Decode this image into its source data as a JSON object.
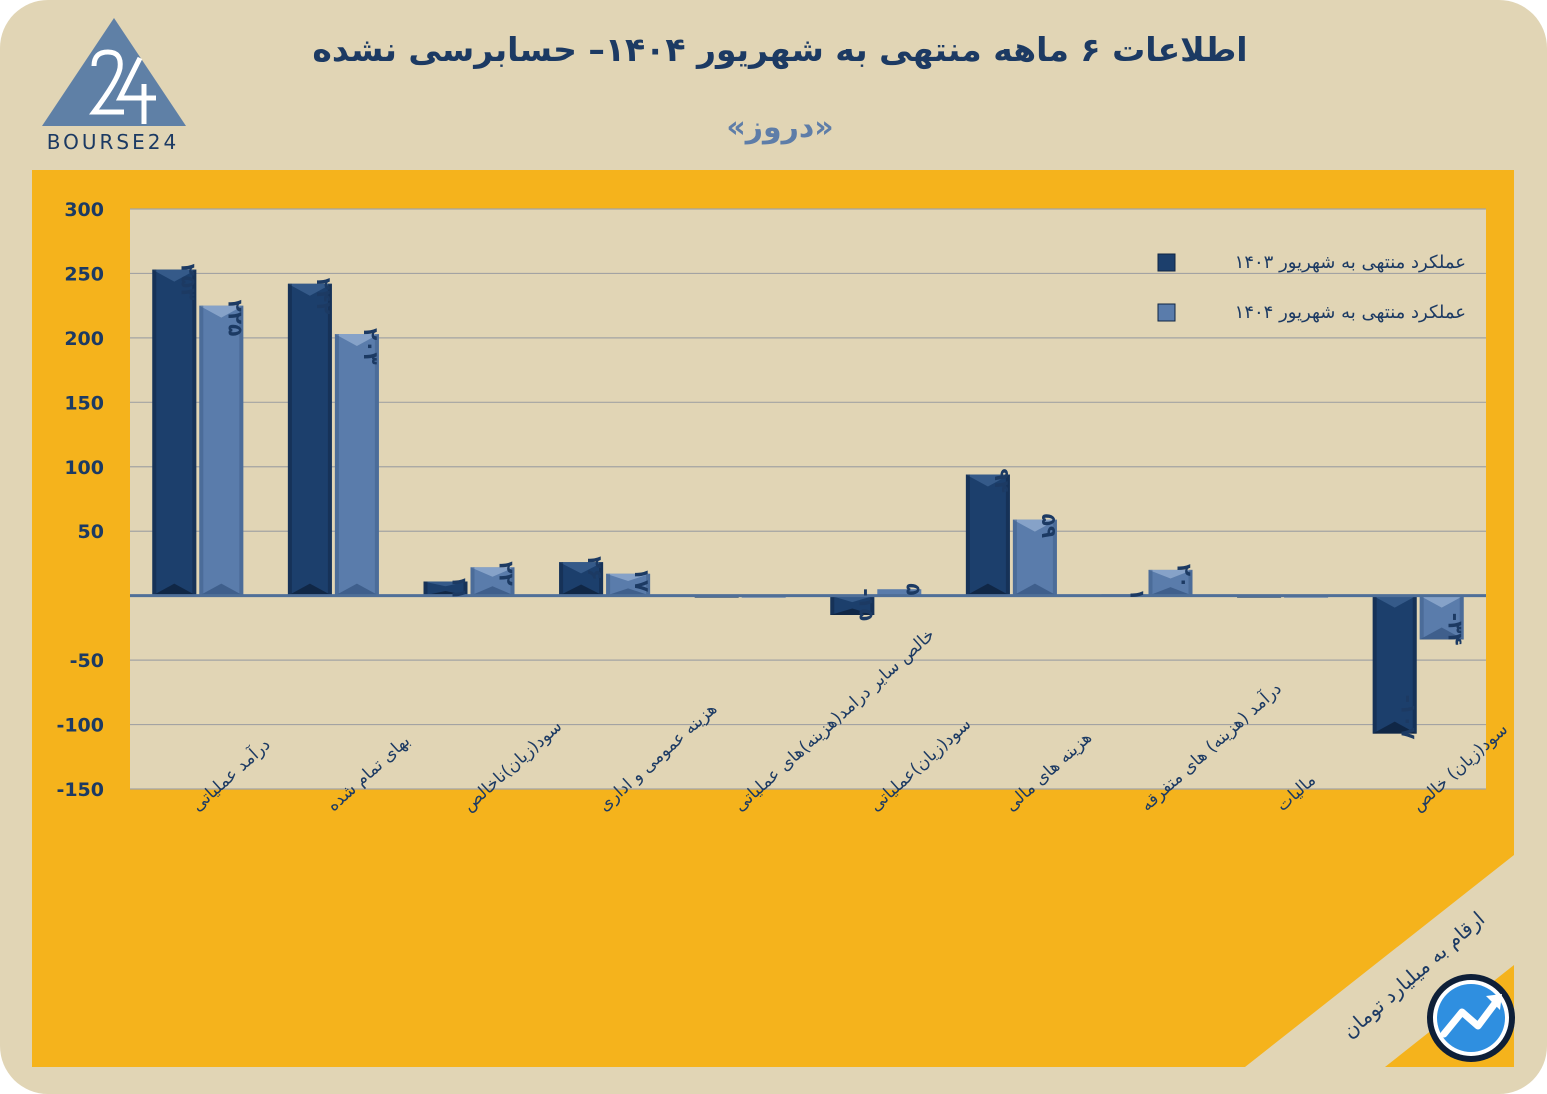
{
  "header": {
    "title": "اطلاعات ۶ ماهه منتهی به شهریور  ۱۴۰۴– حسابرسی نشده",
    "subtitle": "«دروز»",
    "logo_text": "BOURSE24"
  },
  "unit_note": "ارقام به میلیارد تومان",
  "colors": {
    "frame": "#e1d5b5",
    "panel": "#f5b31c",
    "plot": "#e1d5b5",
    "series_1403": "#1c3f6c",
    "series_1404": "#5a7cab",
    "text": "#1c3a63"
  },
  "chart_data": {
    "type": "bar",
    "ylim": [
      -150,
      300
    ],
    "yticks": [
      300,
      250,
      200,
      150,
      100,
      50,
      0,
      -50,
      -100,
      -150
    ],
    "ytick_labels": [
      "300",
      "250",
      "200",
      "150",
      "100",
      "50",
      "",
      "-50",
      "-100",
      "-150"
    ],
    "grid": true,
    "legend_position": "top-right",
    "categories": [
      "درآمد عملیاتی",
      "بهای تمام شده",
      "سود(زیان)ناخالص",
      "هزینه عمومی و اداری",
      "خالص سایر درامد(هزینه)های عملیاتی",
      "سود(زیان)عملیاتی",
      "هزینه های مالی",
      "درآمد (هزینه) های متفرقه",
      "مالیات",
      "سود(زیان) خالص"
    ],
    "series": [
      {
        "name": "عملکرد منتهی به شهریور ۱۴۰۳",
        "values": [
          253,
          242,
          11,
          26,
          0,
          -15,
          94,
          1,
          0,
          -107
        ],
        "labels": [
          "۲۵۳",
          "۲۴۲",
          "۱۱",
          "۲۶",
          "",
          "-۱۵",
          "۹۴",
          "۱",
          "",
          "-۱۰۷"
        ]
      },
      {
        "name": "عملکرد منتهی به شهریور ۱۴۰۴",
        "values": [
          225,
          203,
          22,
          17,
          0,
          5,
          59,
          20,
          0,
          -34
        ],
        "labels": [
          "۲۲۵",
          "۲۰۳",
          "۲۲",
          "۱۷",
          "",
          "۵",
          "۵۹",
          "۲۰",
          "",
          "-۳۴"
        ]
      }
    ]
  }
}
